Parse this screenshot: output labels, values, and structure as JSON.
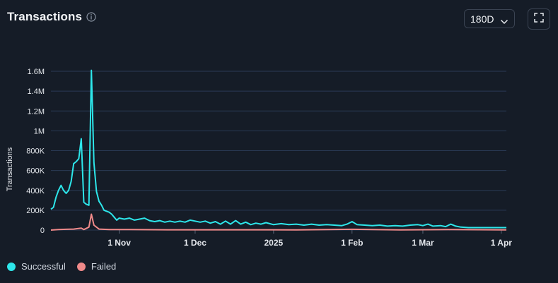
{
  "header": {
    "title": "Transactions"
  },
  "controls": {
    "range_label": "180D"
  },
  "icons": {
    "info": "info-circle-icon",
    "chevron": "chevron-down-icon",
    "expand": "expand-icon"
  },
  "colors": {
    "background": "#151c27",
    "grid": "#2a3a55",
    "successful": "#2de6ea",
    "failed": "#f08a8a"
  },
  "chart_data": {
    "type": "line",
    "xlabel": "",
    "ylabel": "Transactions",
    "ylim": [
      0,
      1600000
    ],
    "y_ticks": [
      0,
      200000,
      400000,
      600000,
      800000,
      1000000,
      1200000,
      1400000,
      1600000
    ],
    "y_tick_labels": [
      "0",
      "200K",
      "400K",
      "600K",
      "800K",
      "1M",
      "1.2M",
      "1.4M",
      "1.6M"
    ],
    "x_range": [
      "2024-10-05",
      "2025-04-03"
    ],
    "x_ticks": [
      "2024-11-01",
      "2024-12-01",
      "2025-01-01",
      "2025-02-01",
      "2025-03-01",
      "2025-04-01"
    ],
    "x_tick_labels": [
      "1 Nov",
      "1 Dec",
      "2025",
      "1 Feb",
      "1 Mar",
      "1 Apr"
    ],
    "grid": true,
    "legend_position": "bottom-left",
    "series": [
      {
        "name": "Successful",
        "color": "#2de6ea",
        "points": [
          [
            "2024-10-05",
            210000
          ],
          [
            "2024-10-06",
            230000
          ],
          [
            "2024-10-07",
            330000
          ],
          [
            "2024-10-08",
            400000
          ],
          [
            "2024-10-09",
            450000
          ],
          [
            "2024-10-10",
            400000
          ],
          [
            "2024-10-11",
            370000
          ],
          [
            "2024-10-12",
            400000
          ],
          [
            "2024-10-13",
            490000
          ],
          [
            "2024-10-14",
            670000
          ],
          [
            "2024-10-15",
            690000
          ],
          [
            "2024-10-16",
            720000
          ],
          [
            "2024-10-17",
            920000
          ],
          [
            "2024-10-18",
            280000
          ],
          [
            "2024-10-19",
            260000
          ],
          [
            "2024-10-20",
            250000
          ],
          [
            "2024-10-21",
            1610000
          ],
          [
            "2024-10-22",
            680000
          ],
          [
            "2024-10-23",
            390000
          ],
          [
            "2024-10-24",
            290000
          ],
          [
            "2024-10-25",
            250000
          ],
          [
            "2024-10-26",
            200000
          ],
          [
            "2024-10-27",
            190000
          ],
          [
            "2024-10-28",
            180000
          ],
          [
            "2024-10-29",
            160000
          ],
          [
            "2024-10-30",
            130000
          ],
          [
            "2024-10-31",
            100000
          ],
          [
            "2024-11-01",
            120000
          ],
          [
            "2024-11-03",
            110000
          ],
          [
            "2024-11-05",
            120000
          ],
          [
            "2024-11-07",
            100000
          ],
          [
            "2024-11-09",
            110000
          ],
          [
            "2024-11-11",
            120000
          ],
          [
            "2024-11-13",
            95000
          ],
          [
            "2024-11-15",
            85000
          ],
          [
            "2024-11-17",
            95000
          ],
          [
            "2024-11-19",
            80000
          ],
          [
            "2024-11-21",
            90000
          ],
          [
            "2024-11-23",
            80000
          ],
          [
            "2024-11-25",
            90000
          ],
          [
            "2024-11-27",
            80000
          ],
          [
            "2024-11-29",
            100000
          ],
          [
            "2024-12-01",
            90000
          ],
          [
            "2024-12-03",
            80000
          ],
          [
            "2024-12-05",
            90000
          ],
          [
            "2024-12-07",
            70000
          ],
          [
            "2024-12-09",
            85000
          ],
          [
            "2024-12-11",
            60000
          ],
          [
            "2024-12-13",
            90000
          ],
          [
            "2024-12-15",
            60000
          ],
          [
            "2024-12-17",
            95000
          ],
          [
            "2024-12-19",
            60000
          ],
          [
            "2024-12-21",
            80000
          ],
          [
            "2024-12-23",
            55000
          ],
          [
            "2024-12-25",
            70000
          ],
          [
            "2024-12-27",
            60000
          ],
          [
            "2024-12-29",
            75000
          ],
          [
            "2025-01-01",
            55000
          ],
          [
            "2025-01-04",
            65000
          ],
          [
            "2025-01-07",
            55000
          ],
          [
            "2025-01-10",
            60000
          ],
          [
            "2025-01-13",
            50000
          ],
          [
            "2025-01-16",
            60000
          ],
          [
            "2025-01-19",
            50000
          ],
          [
            "2025-01-22",
            55000
          ],
          [
            "2025-01-25",
            50000
          ],
          [
            "2025-01-28",
            45000
          ],
          [
            "2025-01-30",
            60000
          ],
          [
            "2025-02-01",
            85000
          ],
          [
            "2025-02-03",
            55000
          ],
          [
            "2025-02-06",
            50000
          ],
          [
            "2025-02-09",
            45000
          ],
          [
            "2025-02-12",
            50000
          ],
          [
            "2025-02-15",
            40000
          ],
          [
            "2025-02-18",
            45000
          ],
          [
            "2025-02-21",
            40000
          ],
          [
            "2025-02-24",
            50000
          ],
          [
            "2025-02-27",
            55000
          ],
          [
            "2025-03-01",
            45000
          ],
          [
            "2025-03-03",
            60000
          ],
          [
            "2025-03-05",
            40000
          ],
          [
            "2025-03-08",
            45000
          ],
          [
            "2025-03-10",
            35000
          ],
          [
            "2025-03-12",
            60000
          ],
          [
            "2025-03-14",
            40000
          ],
          [
            "2025-03-16",
            30000
          ],
          [
            "2025-03-19",
            25000
          ],
          [
            "2025-03-23",
            25000
          ],
          [
            "2025-03-27",
            25000
          ],
          [
            "2025-03-31",
            25000
          ],
          [
            "2025-04-03",
            25000
          ]
        ]
      },
      {
        "name": "Failed",
        "color": "#f08a8a",
        "points": [
          [
            "2024-10-05",
            0
          ],
          [
            "2024-10-08",
            5000
          ],
          [
            "2024-10-11",
            8000
          ],
          [
            "2024-10-14",
            10000
          ],
          [
            "2024-10-17",
            20000
          ],
          [
            "2024-10-18",
            5000
          ],
          [
            "2024-10-20",
            30000
          ],
          [
            "2024-10-21",
            160000
          ],
          [
            "2024-10-22",
            50000
          ],
          [
            "2024-10-24",
            10000
          ],
          [
            "2024-10-28",
            5000
          ],
          [
            "2024-11-05",
            5000
          ],
          [
            "2024-11-20",
            3000
          ],
          [
            "2024-12-10",
            3000
          ],
          [
            "2025-01-10",
            2000
          ],
          [
            "2025-02-01",
            8000
          ],
          [
            "2025-02-20",
            2000
          ],
          [
            "2025-03-12",
            5000
          ],
          [
            "2025-04-03",
            2000
          ]
        ]
      }
    ]
  },
  "legend": {
    "items": [
      {
        "label": "Successful",
        "color": "#2de6ea"
      },
      {
        "label": "Failed",
        "color": "#f08a8a"
      }
    ]
  }
}
